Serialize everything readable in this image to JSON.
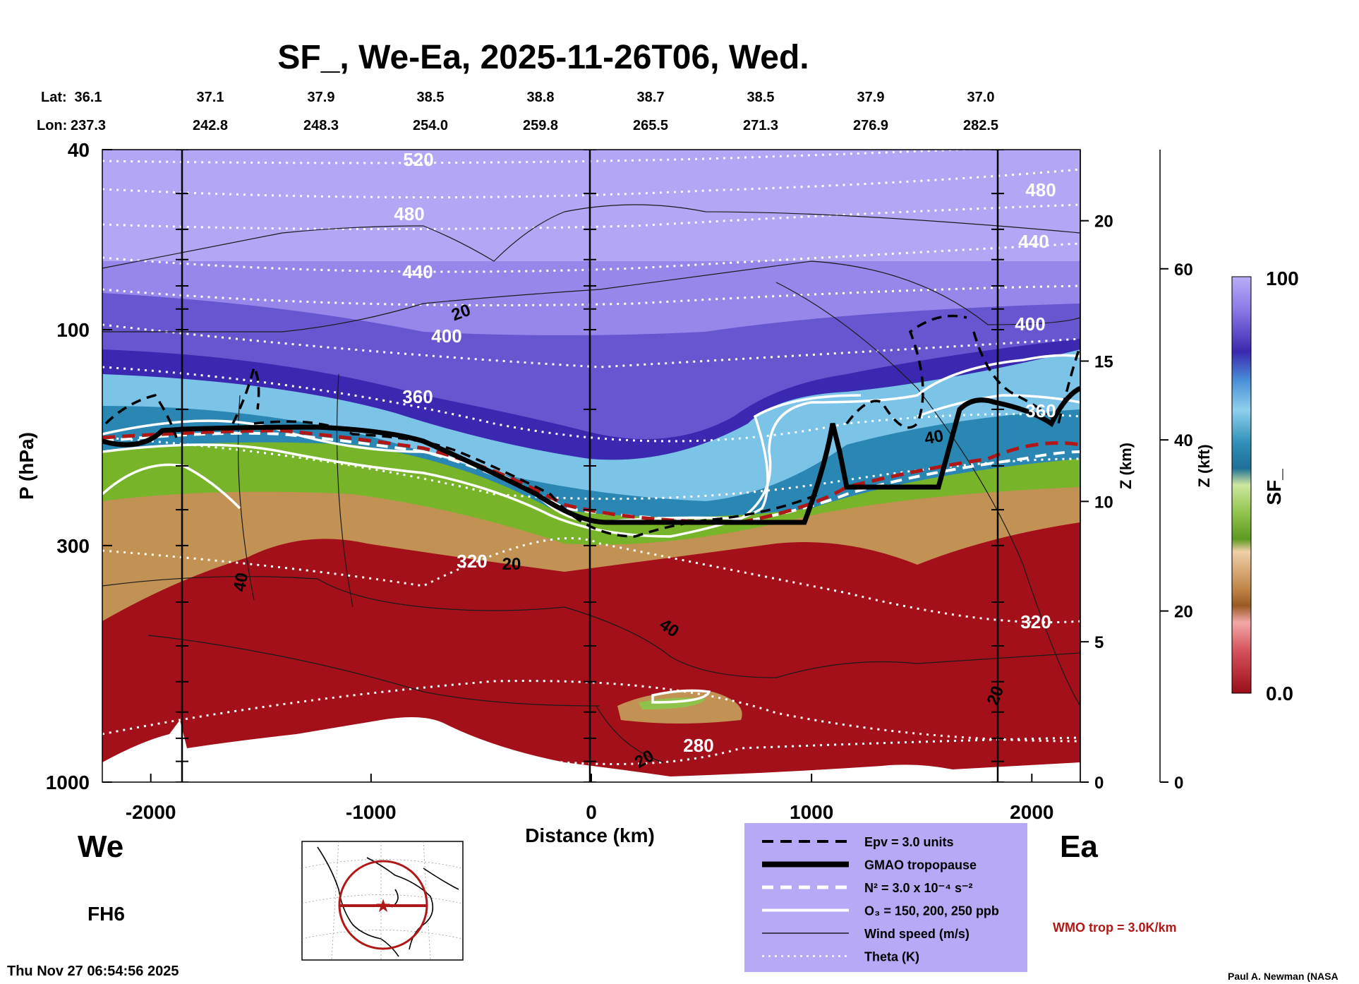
{
  "chart_data": {
    "type": "heatmap",
    "title": "SF_, We-Ea, 2025-11-26T06, Wed.",
    "xlabel": "Distance (km)",
    "ylabel": "P (hPa)",
    "y2label": "Z (km)",
    "y3label": "Z (kft)",
    "colorbar_label": "SF_",
    "xlim": [
      -2220,
      2220
    ],
    "x_ticks": [
      -2000,
      -1000,
      0,
      1000,
      2000
    ],
    "y_ticks_hpa": [
      40,
      100,
      300,
      1000
    ],
    "z_km_ticks": [
      0,
      5,
      10,
      15,
      20
    ],
    "z_kft_ticks": [
      0,
      20,
      40,
      60
    ],
    "colorbar_ticks": [
      "100",
      "0.0"
    ],
    "lat_label": "Lat:",
    "lon_label": "Lon:",
    "lat": [
      "36.1",
      "37.1",
      "37.9",
      "38.5",
      "38.8",
      "38.7",
      "38.5",
      "37.9",
      "37.0"
    ],
    "lon": [
      "237.3",
      "242.8",
      "248.3",
      "254.0",
      "259.8",
      "265.5",
      "271.3",
      "276.9",
      "282.5"
    ],
    "theta_labels": [
      "520",
      "480",
      "440",
      "400",
      "360",
      "320",
      "280",
      "480",
      "440",
      "400",
      "360",
      "320"
    ],
    "wind_labels": [
      "20",
      "20",
      "40",
      "40",
      "40",
      "20",
      "20"
    ],
    "west_label": "We",
    "east_label": "Ea",
    "forecast_hour": "FH6",
    "timestamp": "Thu Nov 27 06:54:56 2025",
    "author": "Paul A. Newman (NASA",
    "wmo_note": "WMO trop = 3.0K/km",
    "legend": [
      {
        "style": "dashed-black",
        "label": "Epv = 3.0 units"
      },
      {
        "style": "thick-black",
        "label": "GMAO tropopause"
      },
      {
        "style": "dashed-white",
        "label": "N² = 3.0 x 10⁻⁴ s⁻²"
      },
      {
        "style": "solid-white",
        "label": "O₃ = 150, 200, 250 ppb"
      },
      {
        "style": "thin-black",
        "label": "Wind speed (m/s)"
      },
      {
        "style": "dotted-white",
        "label": "Theta (K)"
      }
    ],
    "colors": {
      "stratosphere_top": "#b3a6f5",
      "stratosphere_mid": "#3a28b0",
      "blue": "#3fa0cd",
      "green": "#78b42a",
      "tan": "#c29254",
      "troposphere": "#a3101a",
      "legend_bg": "#b7a9f5",
      "wmo_red": "#b01818"
    }
  }
}
